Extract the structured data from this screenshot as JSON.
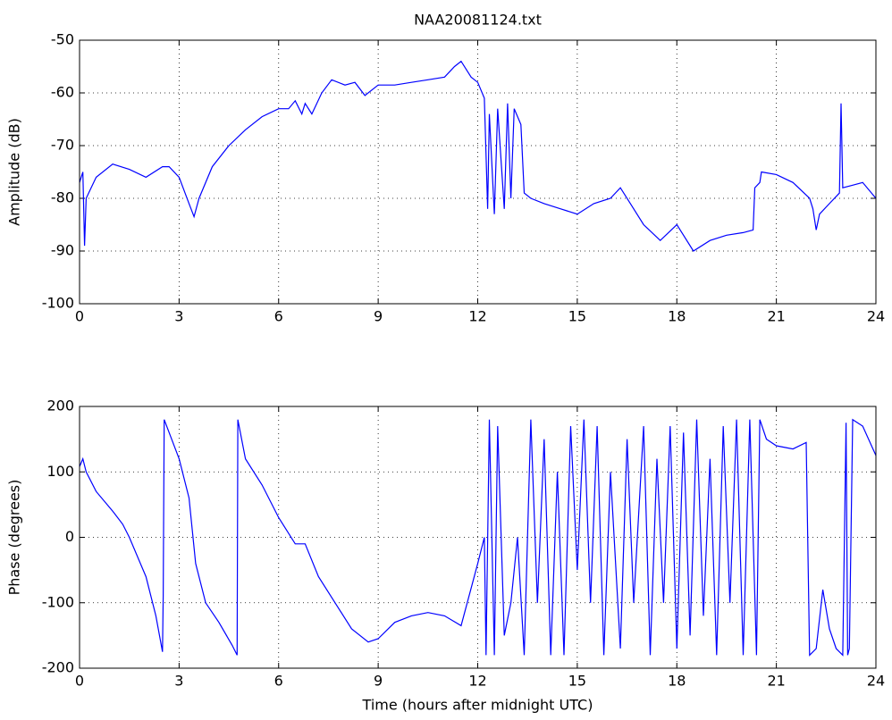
{
  "chart_data": [
    {
      "type": "line",
      "title": "NAA20081124.txt",
      "ylabel": "Amplitude (dB)",
      "xlim": [
        0,
        24
      ],
      "xticks": [
        0,
        3,
        6,
        9,
        12,
        15,
        18,
        21,
        24
      ],
      "ylim": [
        -100,
        -50
      ],
      "yticks": [
        -100,
        -90,
        -80,
        -70,
        -60,
        -50
      ],
      "grid": true,
      "series": [
        {
          "name": "Amplitude",
          "color": "#0000ff",
          "x": [
            0,
            0.1,
            0.15,
            0.2,
            0.5,
            1,
            1.5,
            2,
            2.5,
            2.7,
            3,
            3.3,
            3.45,
            3.6,
            4,
            4.5,
            5,
            5.5,
            6,
            6.3,
            6.5,
            6.7,
            6.8,
            7,
            7.3,
            7.6,
            8,
            8.3,
            8.6,
            9,
            9.5,
            10,
            10.5,
            11,
            11.3,
            11.5,
            11.8,
            12,
            12.2,
            12.3,
            12.35,
            12.5,
            12.6,
            12.8,
            12.9,
            13,
            13.1,
            13.3,
            13.4,
            13.6,
            14,
            14.5,
            15,
            15.5,
            16,
            16.3,
            16.6,
            17,
            17.5,
            18,
            18.5,
            19,
            19.5,
            20,
            20.3,
            20.35,
            20.5,
            20.55,
            21,
            21.5,
            22,
            22.1,
            22.2,
            22.3,
            22.6,
            22.9,
            22.95,
            23,
            23.3,
            23.6,
            24
          ],
          "values": [
            -77,
            -75,
            -89,
            -80,
            -76,
            -73.5,
            -74.5,
            -76,
            -74,
            -74,
            -76,
            -81,
            -83.5,
            -80,
            -74,
            -70,
            -67,
            -64.5,
            -63,
            -63,
            -61.5,
            -64,
            -62,
            -64,
            -60,
            -57.5,
            -58.5,
            -58,
            -60.5,
            -58.5,
            -58.5,
            -58,
            -57.5,
            -57,
            -55,
            -54,
            -57,
            -58,
            -61,
            -82,
            -64,
            -83,
            -63,
            -82,
            -62,
            -80,
            -63,
            -66,
            -79,
            -80,
            -81,
            -82,
            -83,
            -81,
            -80,
            -78,
            -81,
            -85,
            -88,
            -85,
            -90,
            -88,
            -87,
            -86.5,
            -86,
            -78,
            -77,
            -75,
            -75.5,
            -77,
            -80,
            -82,
            -86,
            -83,
            -81,
            -79,
            -62,
            -78,
            -77.5,
            -77,
            -80
          ]
        }
      ]
    },
    {
      "type": "line",
      "xlabel": "Time (hours after midnight UTC)",
      "ylabel": "Phase (degrees)",
      "xlim": [
        0,
        24
      ],
      "xticks": [
        0,
        3,
        6,
        9,
        12,
        15,
        18,
        21,
        24
      ],
      "ylim": [
        -200,
        200
      ],
      "yticks": [
        -200,
        -100,
        0,
        100,
        200
      ],
      "grid": true,
      "series": [
        {
          "name": "Phase",
          "color": "#0000ff",
          "x": [
            0,
            0.1,
            0.2,
            0.5,
            1,
            1.3,
            1.5,
            2,
            2.3,
            2.5,
            2.52,
            2.55,
            3,
            3.3,
            3.5,
            3.8,
            4.2,
            4.6,
            4.75,
            4.77,
            5,
            5.5,
            6,
            6.5,
            6.8,
            7.2,
            7.7,
            8.2,
            8.7,
            9,
            9.5,
            10,
            10.5,
            11,
            11.5,
            12,
            12.2,
            12.25,
            12.35,
            12.5,
            12.6,
            12.8,
            13,
            13.2,
            13.4,
            13.6,
            13.8,
            14,
            14.2,
            14.4,
            14.6,
            14.8,
            15,
            15.2,
            15.4,
            15.6,
            15.8,
            16,
            16.3,
            16.5,
            16.7,
            17,
            17.2,
            17.4,
            17.6,
            17.8,
            18,
            18.2,
            18.4,
            18.6,
            18.8,
            19,
            19.2,
            19.4,
            19.6,
            19.8,
            20,
            20.2,
            20.4,
            20.5,
            20.7,
            21,
            21.5,
            21.9,
            22,
            22.2,
            22.4,
            22.6,
            22.8,
            23,
            23.1,
            23.15,
            23.2,
            23.3,
            23.6,
            24
          ],
          "values": [
            108,
            120,
            100,
            70,
            40,
            20,
            0,
            -60,
            -120,
            -175,
            -90,
            180,
            120,
            60,
            -40,
            -100,
            -130,
            -165,
            -180,
            180,
            120,
            80,
            30,
            -10,
            -10,
            -60,
            -100,
            -140,
            -160,
            -155,
            -130,
            -120,
            -115,
            -120,
            -135,
            -40,
            0,
            -180,
            180,
            -180,
            170,
            -150,
            -100,
            0,
            -180,
            180,
            -100,
            150,
            -180,
            100,
            -180,
            170,
            -50,
            180,
            -100,
            170,
            -180,
            100,
            -170,
            150,
            -100,
            170,
            -180,
            120,
            -100,
            170,
            -170,
            160,
            -150,
            180,
            -120,
            120,
            -180,
            170,
            -100,
            180,
            -180,
            180,
            -180,
            180,
            150,
            140,
            135,
            145,
            -180,
            -170,
            -80,
            -140,
            -170,
            -180,
            175,
            -180,
            -170,
            180,
            170,
            125
          ]
        }
      ]
    }
  ]
}
